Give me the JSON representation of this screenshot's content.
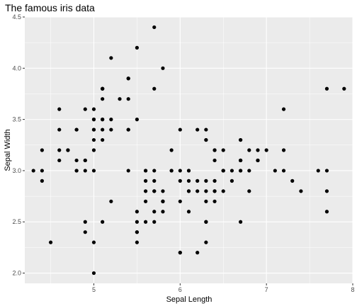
{
  "chart_data": {
    "type": "scatter",
    "title": "The famous iris data",
    "xlabel": "Sepal Length",
    "ylabel": "Sepal Width",
    "xlim": [
      4.2,
      8.0
    ],
    "ylim": [
      1.9,
      4.5
    ],
    "x_ticks": [
      "5",
      "6",
      "7",
      "8"
    ],
    "x_tick_values": [
      5,
      6,
      7,
      8
    ],
    "y_ticks": [
      "2.0",
      "2.5",
      "3.0",
      "3.5",
      "4.0",
      "4.5"
    ],
    "y_tick_values": [
      2.0,
      2.5,
      3.0,
      3.5,
      4.0,
      4.5
    ],
    "grid": true,
    "panel_color": "#ebebeb",
    "grid_color": "#ffffff",
    "point_color": "#000000",
    "points": [
      [
        5.1,
        3.5
      ],
      [
        4.9,
        3.0
      ],
      [
        4.7,
        3.2
      ],
      [
        4.6,
        3.1
      ],
      [
        5.0,
        3.6
      ],
      [
        5.4,
        3.9
      ],
      [
        4.6,
        3.4
      ],
      [
        5.0,
        3.4
      ],
      [
        4.4,
        2.9
      ],
      [
        4.9,
        3.1
      ],
      [
        5.4,
        3.7
      ],
      [
        4.8,
        3.4
      ],
      [
        4.8,
        3.0
      ],
      [
        4.3,
        3.0
      ],
      [
        5.8,
        4.0
      ],
      [
        5.7,
        4.4
      ],
      [
        5.4,
        3.9
      ],
      [
        5.1,
        3.5
      ],
      [
        5.7,
        3.8
      ],
      [
        5.1,
        3.8
      ],
      [
        5.4,
        3.4
      ],
      [
        5.1,
        3.7
      ],
      [
        4.6,
        3.6
      ],
      [
        5.1,
        3.3
      ],
      [
        4.8,
        3.4
      ],
      [
        5.0,
        3.0
      ],
      [
        5.0,
        3.4
      ],
      [
        5.2,
        3.5
      ],
      [
        5.2,
        3.4
      ],
      [
        4.7,
        3.2
      ],
      [
        4.8,
        3.1
      ],
      [
        5.4,
        3.4
      ],
      [
        5.2,
        4.1
      ],
      [
        5.5,
        4.2
      ],
      [
        4.9,
        3.1
      ],
      [
        5.0,
        3.2
      ],
      [
        5.5,
        3.5
      ],
      [
        4.9,
        3.6
      ],
      [
        4.4,
        3.0
      ],
      [
        5.1,
        3.4
      ],
      [
        5.0,
        3.5
      ],
      [
        4.5,
        2.3
      ],
      [
        4.4,
        3.2
      ],
      [
        5.0,
        3.5
      ],
      [
        5.1,
        3.8
      ],
      [
        4.8,
        3.0
      ],
      [
        5.1,
        3.8
      ],
      [
        4.6,
        3.2
      ],
      [
        5.3,
        3.7
      ],
      [
        5.0,
        3.3
      ],
      [
        7.0,
        3.2
      ],
      [
        6.4,
        3.2
      ],
      [
        6.9,
        3.1
      ],
      [
        5.5,
        2.3
      ],
      [
        6.5,
        2.8
      ],
      [
        5.7,
        2.8
      ],
      [
        6.3,
        3.3
      ],
      [
        4.9,
        2.4
      ],
      [
        6.6,
        2.9
      ],
      [
        5.2,
        2.7
      ],
      [
        5.0,
        2.0
      ],
      [
        5.9,
        3.0
      ],
      [
        6.0,
        2.2
      ],
      [
        6.1,
        2.9
      ],
      [
        5.6,
        2.9
      ],
      [
        6.7,
        3.1
      ],
      [
        5.6,
        3.0
      ],
      [
        5.8,
        2.7
      ],
      [
        6.2,
        2.2
      ],
      [
        5.6,
        2.5
      ],
      [
        5.9,
        3.2
      ],
      [
        6.1,
        2.8
      ],
      [
        6.3,
        2.5
      ],
      [
        6.1,
        2.8
      ],
      [
        6.4,
        2.9
      ],
      [
        6.6,
        3.0
      ],
      [
        6.8,
        2.8
      ],
      [
        6.7,
        3.0
      ],
      [
        6.0,
        2.9
      ],
      [
        5.7,
        2.6
      ],
      [
        5.5,
        2.4
      ],
      [
        5.5,
        2.4
      ],
      [
        5.8,
        2.7
      ],
      [
        6.0,
        2.7
      ],
      [
        5.4,
        3.0
      ],
      [
        6.0,
        3.4
      ],
      [
        6.7,
        3.1
      ],
      [
        6.3,
        2.3
      ],
      [
        5.6,
        3.0
      ],
      [
        5.5,
        2.5
      ],
      [
        5.5,
        2.6
      ],
      [
        6.1,
        3.0
      ],
      [
        5.8,
        2.6
      ],
      [
        5.0,
        2.3
      ],
      [
        5.6,
        2.7
      ],
      [
        5.7,
        3.0
      ],
      [
        5.7,
        2.9
      ],
      [
        6.2,
        2.9
      ],
      [
        5.1,
        2.5
      ],
      [
        5.7,
        2.8
      ],
      [
        6.3,
        3.3
      ],
      [
        5.8,
        2.7
      ],
      [
        7.1,
        3.0
      ],
      [
        6.3,
        2.9
      ],
      [
        6.5,
        3.0
      ],
      [
        7.6,
        3.0
      ],
      [
        4.9,
        2.5
      ],
      [
        7.3,
        2.9
      ],
      [
        6.7,
        2.5
      ],
      [
        7.2,
        3.6
      ],
      [
        6.5,
        3.2
      ],
      [
        6.4,
        2.7
      ],
      [
        6.8,
        3.0
      ],
      [
        5.7,
        2.5
      ],
      [
        5.8,
        2.8
      ],
      [
        6.4,
        3.2
      ],
      [
        6.5,
        3.0
      ],
      [
        7.7,
        3.8
      ],
      [
        7.7,
        2.6
      ],
      [
        6.0,
        2.2
      ],
      [
        6.9,
        3.2
      ],
      [
        5.6,
        2.8
      ],
      [
        7.7,
        2.8
      ],
      [
        6.3,
        2.7
      ],
      [
        6.7,
        3.3
      ],
      [
        7.2,
        3.2
      ],
      [
        6.2,
        2.8
      ],
      [
        6.1,
        3.0
      ],
      [
        6.4,
        2.8
      ],
      [
        7.2,
        3.0
      ],
      [
        7.4,
        2.8
      ],
      [
        7.9,
        3.8
      ],
      [
        6.4,
        2.8
      ],
      [
        6.3,
        2.8
      ],
      [
        6.1,
        2.6
      ],
      [
        7.7,
        3.0
      ],
      [
        6.3,
        3.4
      ],
      [
        6.4,
        3.1
      ],
      [
        6.0,
        3.0
      ],
      [
        6.9,
        3.1
      ],
      [
        6.7,
        3.1
      ],
      [
        6.9,
        3.1
      ],
      [
        5.8,
        2.7
      ],
      [
        6.8,
        3.2
      ],
      [
        6.7,
        3.3
      ],
      [
        6.7,
        3.0
      ],
      [
        6.3,
        2.5
      ],
      [
        6.5,
        3.0
      ],
      [
        6.2,
        3.4
      ],
      [
        5.9,
        3.0
      ]
    ]
  }
}
